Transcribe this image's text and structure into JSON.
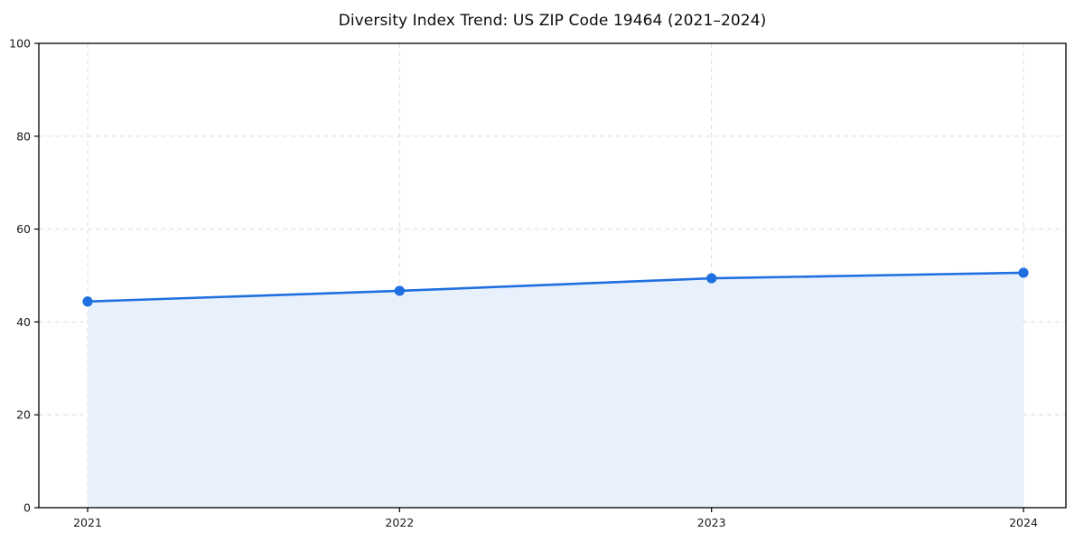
{
  "chart_data": {
    "type": "area",
    "title": "Diversity Index Trend: US ZIP Code 19464 (2021–2024)",
    "x": [
      "2021",
      "2022",
      "2023",
      "2024"
    ],
    "values": [
      44.4,
      46.7,
      49.4,
      50.6
    ],
    "xlabel": "",
    "ylabel": "",
    "ylim": [
      0,
      100
    ],
    "yticks": [
      0,
      20,
      40,
      60,
      80,
      100
    ],
    "grid": "dashed",
    "legend_position": "none",
    "colors": {
      "line": "#1f6fe0",
      "marker": "#1f6fe0",
      "fill": "#e8f0fc",
      "grid": "#dcdcdc",
      "spine": "#000000",
      "tick_text": "#1a1a1a",
      "title_text": "#0d0d0d",
      "background": "#ffffff"
    }
  }
}
